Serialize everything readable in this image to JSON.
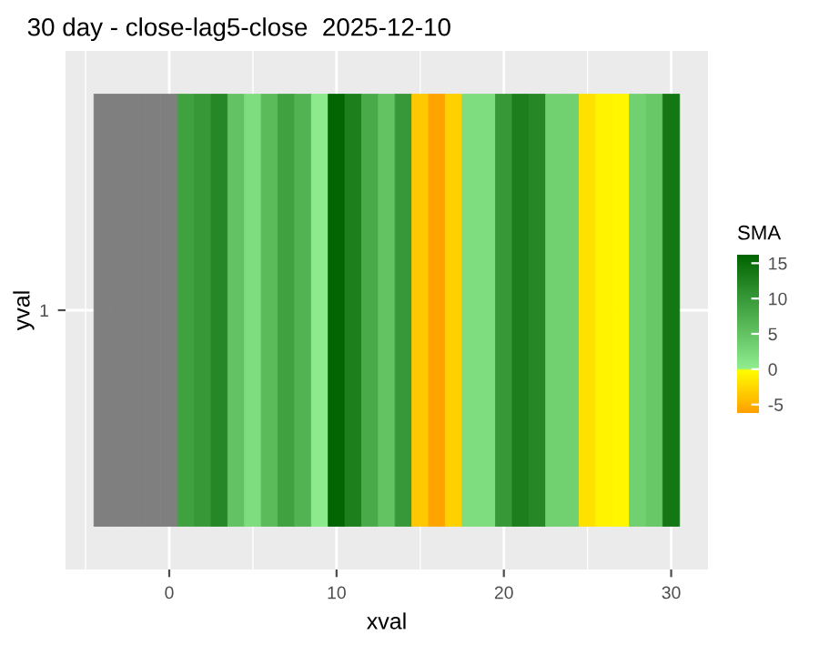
{
  "chart_data": {
    "type": "heatmap",
    "title": "30 day - close-lag5-close  2025-12-10",
    "xlabel": "xval",
    "ylabel": "yval",
    "clabel": "SMA",
    "x": [
      -4,
      -3,
      -2,
      -1,
      0,
      1,
      2,
      3,
      4,
      5,
      6,
      7,
      8,
      9,
      10,
      11,
      12,
      13,
      14,
      15,
      16,
      17,
      18,
      19,
      20,
      21,
      22,
      23,
      24,
      25,
      26,
      27,
      28,
      29,
      30
    ],
    "y_categories": [
      "1"
    ],
    "cells": [
      [
        null,
        null,
        null,
        null,
        null,
        9,
        10,
        12,
        5,
        2,
        6,
        9,
        7,
        0.5,
        16,
        13,
        8,
        5,
        10,
        -3.5,
        -6,
        -3,
        2,
        2,
        10,
        13,
        12,
        3.5,
        3.5,
        -2,
        -0.7,
        -0.5,
        3.5,
        4.5,
        14
      ]
    ],
    "xlim": [
      -6.2,
      32.2
    ],
    "xticks": [
      0,
      10,
      20,
      30
    ],
    "clim": [
      -6.2,
      16.2
    ],
    "cticks": [
      -5,
      0,
      5,
      10,
      15
    ],
    "grid": true
  }
}
